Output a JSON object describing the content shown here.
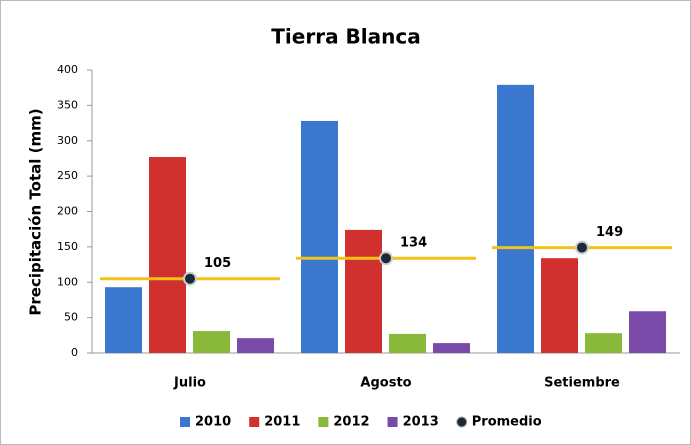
{
  "chart_data": {
    "type": "bar",
    "title": "Tierra Blanca",
    "y_label": "Precipitación Total (mm)",
    "categories": [
      "Julio",
      "Agosto",
      "Setiembre"
    ],
    "series": [
      {
        "name": "2010",
        "color": "#3a78d0",
        "values": [
          93,
          328,
          379
        ]
      },
      {
        "name": "2011",
        "color": "#d0302e",
        "values": [
          277,
          174,
          134
        ]
      },
      {
        "name": "2012",
        "color": "#8ab83a",
        "values": [
          31,
          27,
          28
        ]
      },
      {
        "name": "2013",
        "color": "#7a4aa8",
        "values": [
          21,
          14,
          59
        ]
      },
      {
        "name": "Promedio",
        "type": "point",
        "color": "#1a2a3a",
        "line_color": "#f2c21a",
        "values": [
          105,
          134,
          149
        ]
      }
    ],
    "ylim": [
      0,
      400
    ],
    "yticks": [
      0,
      50,
      100,
      150,
      200,
      250,
      300,
      350,
      400
    ],
    "grid": false,
    "legend": "bottom"
  }
}
